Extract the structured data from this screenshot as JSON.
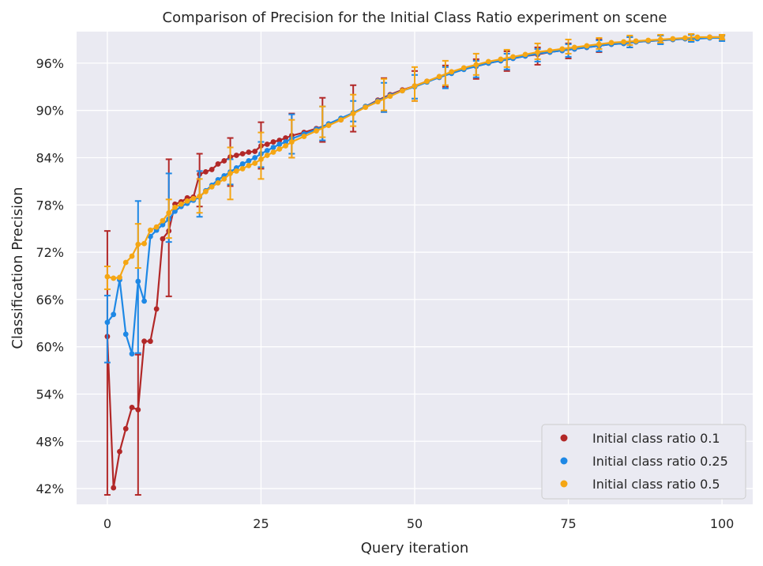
{
  "chart_data": {
    "type": "line",
    "title": "Comparison of Precision for the Initial Class Ratio experiment on scene",
    "xlabel": "Query iteration",
    "ylabel": "Classification Precision",
    "xlim": [
      -5,
      105
    ],
    "ylim": [
      0.4,
      1.0
    ],
    "xticks": [
      0,
      25,
      50,
      75,
      100
    ],
    "xtick_labels": [
      "0",
      "25",
      "50",
      "75",
      "100"
    ],
    "yticks": [
      0.42,
      0.48,
      0.54,
      0.6,
      0.66,
      0.72,
      0.78,
      0.84,
      0.9,
      0.96
    ],
    "ytick_labels": [
      "42%",
      "48%",
      "54%",
      "60%",
      "66%",
      "72%",
      "78%",
      "84%",
      "90%",
      "96%"
    ],
    "grid": true,
    "legend_position": "lower-right",
    "background": "#eaeaf2",
    "series": [
      {
        "name": "Initial class ratio 0.1",
        "color": "#b22828",
        "x": [
          0,
          1,
          2,
          3,
          4,
          5,
          6,
          7,
          8,
          9,
          10,
          11,
          12,
          13,
          14,
          15,
          16,
          17,
          18,
          19,
          20,
          21,
          22,
          23,
          24,
          25,
          26,
          27,
          28,
          29,
          30,
          32,
          34,
          36,
          38,
          40,
          42,
          44,
          46,
          48,
          50,
          52,
          54,
          56,
          58,
          60,
          62,
          64,
          66,
          68,
          70,
          72,
          74,
          76,
          78,
          80,
          82,
          84,
          86,
          88,
          90,
          92,
          94,
          96,
          98,
          100
        ],
        "y": [
          0.613,
          0.421,
          0.467,
          0.496,
          0.523,
          0.52,
          0.607,
          0.607,
          0.648,
          0.737,
          0.747,
          0.781,
          0.784,
          0.789,
          0.79,
          0.819,
          0.822,
          0.825,
          0.832,
          0.836,
          0.841,
          0.843,
          0.845,
          0.847,
          0.848,
          0.855,
          0.857,
          0.86,
          0.862,
          0.865,
          0.868,
          0.872,
          0.877,
          0.882,
          0.888,
          0.897,
          0.905,
          0.913,
          0.92,
          0.926,
          0.931,
          0.937,
          0.942,
          0.948,
          0.953,
          0.956,
          0.96,
          0.963,
          0.966,
          0.969,
          0.971,
          0.974,
          0.976,
          0.978,
          0.98,
          0.982,
          0.984,
          0.985,
          0.987,
          0.988,
          0.989,
          0.99,
          0.991,
          0.992,
          0.993,
          0.993
        ],
        "error_bars": [
          {
            "x": 0,
            "low": 0.412,
            "high": 0.747
          },
          {
            "x": 5,
            "low": 0.412,
            "high": 0.59
          },
          {
            "x": 10,
            "low": 0.664,
            "high": 0.838
          },
          {
            "x": 15,
            "low": 0.778,
            "high": 0.845
          },
          {
            "x": 20,
            "low": 0.804,
            "high": 0.865
          },
          {
            "x": 25,
            "low": 0.826,
            "high": 0.885
          },
          {
            "x": 30,
            "low": 0.84,
            "high": 0.896
          },
          {
            "x": 35,
            "low": 0.86,
            "high": 0.916
          },
          {
            "x": 40,
            "low": 0.873,
            "high": 0.932
          },
          {
            "x": 45,
            "low": 0.898,
            "high": 0.941
          },
          {
            "x": 50,
            "low": 0.912,
            "high": 0.95
          },
          {
            "x": 55,
            "low": 0.93,
            "high": 0.957
          },
          {
            "x": 60,
            "low": 0.94,
            "high": 0.965
          },
          {
            "x": 65,
            "low": 0.95,
            "high": 0.975
          },
          {
            "x": 70,
            "low": 0.958,
            "high": 0.98
          },
          {
            "x": 75,
            "low": 0.966,
            "high": 0.985
          },
          {
            "x": 80,
            "low": 0.974,
            "high": 0.99
          },
          {
            "x": 85,
            "low": 0.98,
            "high": 0.993
          },
          {
            "x": 90,
            "low": 0.985,
            "high": 0.995
          },
          {
            "x": 95,
            "low": 0.988,
            "high": 0.996
          },
          {
            "x": 100,
            "low": 0.99,
            "high": 0.996
          }
        ]
      },
      {
        "name": "Initial class ratio 0.25",
        "color": "#1e88e5",
        "x": [
          0,
          1,
          2,
          3,
          4,
          5,
          6,
          7,
          8,
          9,
          10,
          11,
          12,
          13,
          14,
          15,
          16,
          17,
          18,
          19,
          20,
          21,
          22,
          23,
          24,
          25,
          26,
          27,
          28,
          29,
          30,
          32,
          34,
          36,
          38,
          40,
          42,
          44,
          46,
          48,
          50,
          52,
          54,
          56,
          58,
          60,
          62,
          64,
          66,
          68,
          70,
          72,
          74,
          76,
          78,
          80,
          82,
          84,
          86,
          88,
          90,
          92,
          94,
          96,
          98,
          100
        ],
        "y": [
          0.631,
          0.641,
          0.685,
          0.616,
          0.591,
          0.683,
          0.658,
          0.74,
          0.748,
          0.755,
          0.762,
          0.772,
          0.778,
          0.782,
          0.786,
          0.79,
          0.798,
          0.805,
          0.812,
          0.817,
          0.822,
          0.827,
          0.832,
          0.836,
          0.84,
          0.845,
          0.849,
          0.853,
          0.857,
          0.86,
          0.864,
          0.87,
          0.876,
          0.883,
          0.89,
          0.897,
          0.905,
          0.912,
          0.919,
          0.925,
          0.93,
          0.936,
          0.942,
          0.947,
          0.952,
          0.956,
          0.96,
          0.963,
          0.966,
          0.969,
          0.972,
          0.974,
          0.976,
          0.978,
          0.98,
          0.982,
          0.984,
          0.985,
          0.987,
          0.988,
          0.989,
          0.99,
          0.991,
          0.991,
          0.992,
          0.992
        ],
        "error_bars": [
          {
            "x": 0,
            "low": 0.58,
            "high": 0.665
          },
          {
            "x": 5,
            "low": 0.592,
            "high": 0.785
          },
          {
            "x": 10,
            "low": 0.733,
            "high": 0.82
          },
          {
            "x": 15,
            "low": 0.765,
            "high": 0.823
          },
          {
            "x": 20,
            "low": 0.806,
            "high": 0.838
          },
          {
            "x": 25,
            "low": 0.828,
            "high": 0.86
          },
          {
            "x": 30,
            "low": 0.845,
            "high": 0.895
          },
          {
            "x": 35,
            "low": 0.862,
            "high": 0.905
          },
          {
            "x": 40,
            "low": 0.886,
            "high": 0.912
          },
          {
            "x": 45,
            "low": 0.898,
            "high": 0.935
          },
          {
            "x": 50,
            "low": 0.915,
            "high": 0.945
          },
          {
            "x": 55,
            "low": 0.928,
            "high": 0.955
          },
          {
            "x": 60,
            "low": 0.942,
            "high": 0.963
          },
          {
            "x": 65,
            "low": 0.952,
            "high": 0.972
          },
          {
            "x": 70,
            "low": 0.962,
            "high": 0.978
          },
          {
            "x": 75,
            "low": 0.968,
            "high": 0.984
          },
          {
            "x": 80,
            "low": 0.975,
            "high": 0.989
          },
          {
            "x": 85,
            "low": 0.98,
            "high": 0.993
          },
          {
            "x": 90,
            "low": 0.984,
            "high": 0.995
          },
          {
            "x": 95,
            "low": 0.987,
            "high": 0.996
          },
          {
            "x": 100,
            "low": 0.988,
            "high": 0.995
          }
        ]
      },
      {
        "name": "Initial class ratio 0.5",
        "color": "#f5a614",
        "x": [
          0,
          1,
          2,
          3,
          4,
          5,
          6,
          7,
          8,
          9,
          10,
          11,
          12,
          13,
          14,
          15,
          16,
          17,
          18,
          19,
          20,
          21,
          22,
          23,
          24,
          25,
          26,
          27,
          28,
          29,
          30,
          32,
          34,
          36,
          38,
          40,
          42,
          44,
          46,
          48,
          50,
          52,
          54,
          56,
          58,
          60,
          62,
          64,
          66,
          68,
          70,
          72,
          74,
          76,
          78,
          80,
          82,
          84,
          86,
          88,
          90,
          92,
          94,
          96,
          98,
          100
        ],
        "y": [
          0.689,
          0.687,
          0.688,
          0.707,
          0.715,
          0.73,
          0.731,
          0.748,
          0.752,
          0.76,
          0.77,
          0.777,
          0.781,
          0.785,
          0.788,
          0.791,
          0.797,
          0.803,
          0.808,
          0.813,
          0.82,
          0.823,
          0.826,
          0.83,
          0.833,
          0.838,
          0.843,
          0.847,
          0.851,
          0.855,
          0.86,
          0.867,
          0.874,
          0.881,
          0.888,
          0.896,
          0.904,
          0.911,
          0.918,
          0.925,
          0.931,
          0.937,
          0.943,
          0.949,
          0.954,
          0.958,
          0.962,
          0.965,
          0.968,
          0.971,
          0.974,
          0.976,
          0.978,
          0.98,
          0.982,
          0.984,
          0.986,
          0.987,
          0.988,
          0.989,
          0.99,
          0.991,
          0.992,
          0.993,
          0.993,
          0.993
        ],
        "error_bars": [
          {
            "x": 0,
            "low": 0.673,
            "high": 0.702
          },
          {
            "x": 5,
            "low": 0.7,
            "high": 0.756
          },
          {
            "x": 10,
            "low": 0.738,
            "high": 0.787
          },
          {
            "x": 15,
            "low": 0.77,
            "high": 0.813
          },
          {
            "x": 20,
            "low": 0.787,
            "high": 0.853
          },
          {
            "x": 25,
            "low": 0.813,
            "high": 0.872
          },
          {
            "x": 30,
            "low": 0.84,
            "high": 0.888
          },
          {
            "x": 35,
            "low": 0.866,
            "high": 0.905
          },
          {
            "x": 40,
            "low": 0.88,
            "high": 0.92
          },
          {
            "x": 45,
            "low": 0.9,
            "high": 0.94
          },
          {
            "x": 50,
            "low": 0.912,
            "high": 0.955
          },
          {
            "x": 55,
            "low": 0.932,
            "high": 0.963
          },
          {
            "x": 60,
            "low": 0.945,
            "high": 0.972
          },
          {
            "x": 65,
            "low": 0.955,
            "high": 0.977
          },
          {
            "x": 70,
            "low": 0.965,
            "high": 0.985
          },
          {
            "x": 75,
            "low": 0.972,
            "high": 0.99
          },
          {
            "x": 80,
            "low": 0.978,
            "high": 0.992
          },
          {
            "x": 85,
            "low": 0.983,
            "high": 0.995
          },
          {
            "x": 90,
            "low": 0.986,
            "high": 0.996
          },
          {
            "x": 95,
            "low": 0.989,
            "high": 0.997
          },
          {
            "x": 100,
            "low": 0.99,
            "high": 0.996
          }
        ]
      }
    ]
  }
}
